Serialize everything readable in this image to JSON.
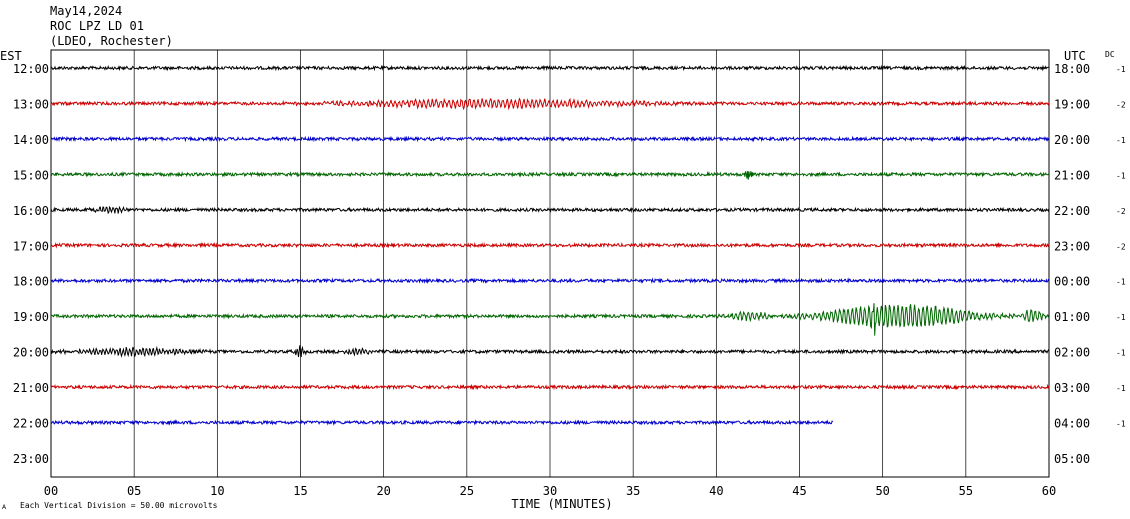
{
  "header": {
    "date": "May14,2024",
    "station": "ROC LPZ LD 01",
    "network": "(LDEO, Rochester)"
  },
  "chart_data": {
    "type": "line",
    "title": "",
    "xlabel": "TIME (MINUTES)",
    "left_axis_label": "EST",
    "right_axis_label": "UTC",
    "dc_label": "DC",
    "xlim": [
      0,
      60
    ],
    "x_ticks": [
      "00",
      "05",
      "10",
      "15",
      "20",
      "25",
      "30",
      "35",
      "40",
      "45",
      "50",
      "55",
      "60"
    ],
    "grid": true,
    "footnote": "Each Vertical Division =   50.00 microvolts",
    "footnote_mark": "A",
    "rows": [
      {
        "est": "12:00",
        "utc": "18:00",
        "dc": "-1",
        "color": "#000000",
        "end_minute": 60,
        "amp": 1.5,
        "events": []
      },
      {
        "est": "13:00",
        "utc": "19:00",
        "dc": "-2",
        "color": "#cc0000",
        "end_minute": 60,
        "amp": 1.5,
        "events": [
          {
            "start": 13,
            "end": 40,
            "amp": 4,
            "period": 0.25
          }
        ]
      },
      {
        "est": "14:00",
        "utc": "20:00",
        "dc": "-1",
        "color": "#0000cc",
        "end_minute": 60,
        "amp": 1.5,
        "events": []
      },
      {
        "est": "15:00",
        "utc": "21:00",
        "dc": "-1",
        "color": "#006600",
        "end_minute": 60,
        "amp": 1.5,
        "events": [
          {
            "start": 41.6,
            "end": 42.2,
            "amp": 6,
            "period": 0.1
          }
        ]
      },
      {
        "est": "16:00",
        "utc": "22:00",
        "dc": "-2",
        "color": "#000000",
        "end_minute": 60,
        "amp": 1.5,
        "events": [
          {
            "start": 2,
            "end": 5,
            "amp": 3,
            "period": 0.2
          }
        ]
      },
      {
        "est": "17:00",
        "utc": "23:00",
        "dc": "-2",
        "color": "#cc0000",
        "end_minute": 60,
        "amp": 1.5,
        "events": []
      },
      {
        "est": "18:00",
        "utc": "00:00",
        "dc": "-1",
        "color": "#0000cc",
        "end_minute": 60,
        "amp": 1.5,
        "events": []
      },
      {
        "est": "19:00",
        "utc": "01:00",
        "dc": "-1",
        "color": "#006600",
        "end_minute": 60,
        "amp": 1.5,
        "events": [
          {
            "start": 40,
            "end": 44,
            "amp": 4,
            "period": 0.25
          },
          {
            "start": 44,
            "end": 58,
            "amp": 11,
            "period": 0.25
          },
          {
            "start": 49.3,
            "end": 49.6,
            "amp": 17,
            "period": 0.1
          },
          {
            "start": 58,
            "end": 60,
            "amp": 6,
            "period": 0.25
          }
        ]
      },
      {
        "est": "20:00",
        "utc": "02:00",
        "dc": "-1",
        "color": "#000000",
        "end_minute": 60,
        "amp": 1.5,
        "events": [
          {
            "start": 0,
            "end": 10,
            "amp": 3.5,
            "period": 0.2
          },
          {
            "start": 14.5,
            "end": 15.5,
            "amp": 5,
            "period": 0.15
          },
          {
            "start": 17,
            "end": 20,
            "amp": 2.5,
            "period": 0.2
          }
        ]
      },
      {
        "est": "21:00",
        "utc": "03:00",
        "dc": "-1",
        "color": "#cc0000",
        "end_minute": 60,
        "amp": 1.5,
        "events": []
      },
      {
        "est": "22:00",
        "utc": "04:00",
        "dc": "-1",
        "color": "#0000cc",
        "end_minute": 47,
        "amp": 1.5,
        "events": []
      },
      {
        "est": "23:00",
        "utc": "05:00",
        "dc": "",
        "color": "#000000",
        "end_minute": 0,
        "amp": 0,
        "events": []
      }
    ]
  }
}
